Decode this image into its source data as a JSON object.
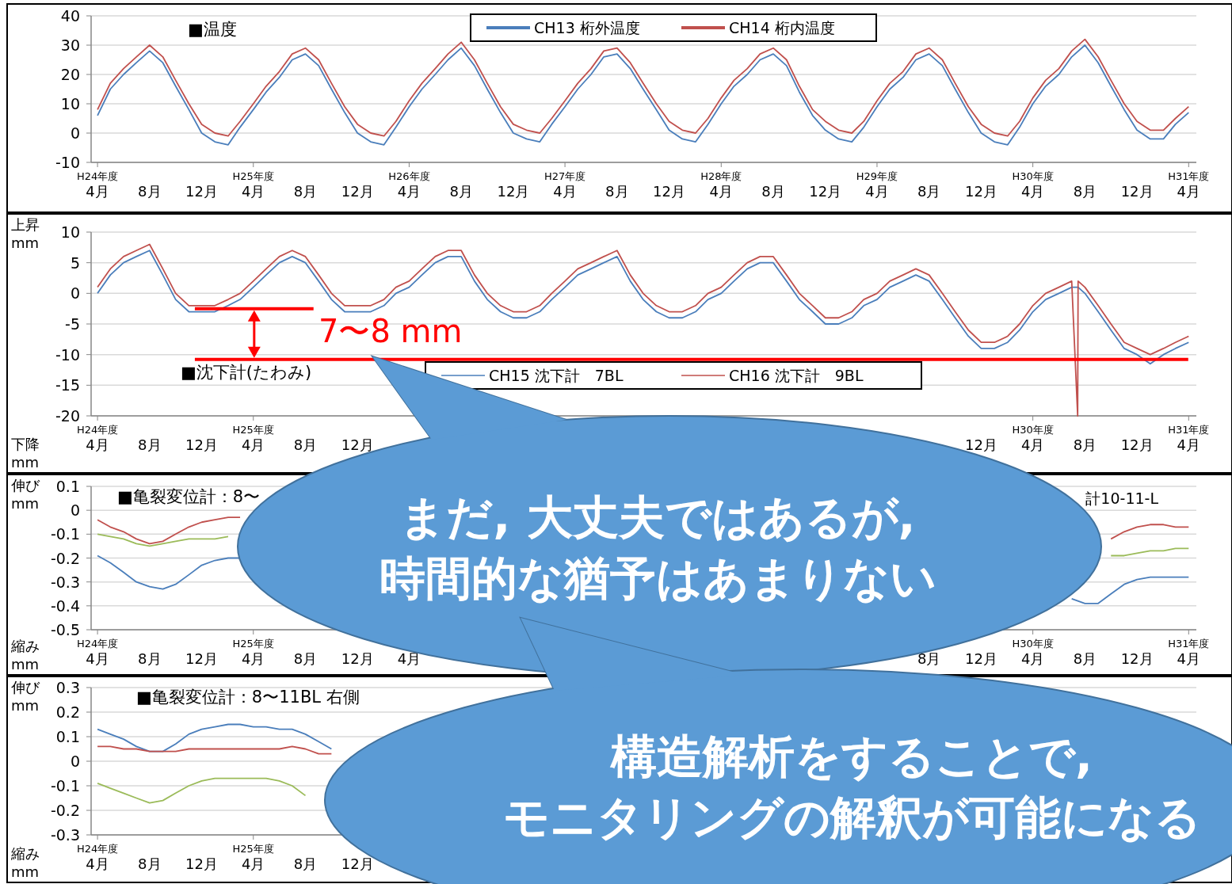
{
  "chart_data": [
    {
      "type": "line",
      "title": "■温度",
      "legend": "top",
      "grid": "y",
      "xlim": [
        "2012-03-17",
        "2019-04-19"
      ],
      "ylim": [
        -10,
        40
      ],
      "yticks": [
        -10,
        0,
        10,
        20,
        30,
        40
      ],
      "xticks": [
        {
          "value": "2012-04",
          "label": "H24年度\n4月"
        },
        {
          "value": "2012-08",
          "label": "8月"
        },
        {
          "value": "2012-12",
          "label": "12月"
        },
        {
          "value": "2013-04",
          "label": "H25年度\n4月"
        },
        {
          "value": "2013-08",
          "label": "8月"
        },
        {
          "value": "2013-12",
          "label": "12月"
        },
        {
          "value": "2014-04",
          "label": "H26年度\n4月"
        },
        {
          "value": "2014-08",
          "label": "8月"
        },
        {
          "value": "2014-12",
          "label": "12月"
        },
        {
          "value": "2015-04",
          "label": "H27年度\n4月"
        },
        {
          "value": "2015-08",
          "label": "8月"
        },
        {
          "value": "2015-12",
          "label": "12月"
        },
        {
          "value": "2016-04",
          "label": "H28年度\n4月"
        },
        {
          "value": "2016-08",
          "label": "8月"
        },
        {
          "value": "2016-12",
          "label": "12月"
        },
        {
          "value": "2017-04",
          "label": "H29年度\n4月"
        },
        {
          "value": "2017-08",
          "label": "8月"
        },
        {
          "value": "2017-12",
          "label": "12月"
        },
        {
          "value": "2018-04",
          "label": "H30年度\n4月"
        },
        {
          "value": "2018-08",
          "label": "8月"
        },
        {
          "value": "2018-12",
          "label": "12月"
        },
        {
          "value": "2019-04",
          "label": "H31年度\n4月"
        }
      ],
      "x": [
        "2012-04",
        "2012-05",
        "2012-06",
        "2012-07",
        "2012-08",
        "2012-09",
        "2012-10",
        "2012-11",
        "2012-12",
        "2013-01",
        "2013-02",
        "2013-03",
        "2013-04",
        "2013-05",
        "2013-06",
        "2013-07",
        "2013-08",
        "2013-09",
        "2013-10",
        "2013-11",
        "2013-12",
        "2014-01",
        "2014-02",
        "2014-03",
        "2014-04",
        "2014-05",
        "2014-06",
        "2014-07",
        "2014-08",
        "2014-09",
        "2014-10",
        "2014-11",
        "2014-12",
        "2015-01",
        "2015-02",
        "2015-03",
        "2015-04",
        "2015-05",
        "2015-06",
        "2015-07",
        "2015-08",
        "2015-09",
        "2015-10",
        "2015-11",
        "2015-12",
        "2016-01",
        "2016-02",
        "2016-03",
        "2016-04",
        "2016-05",
        "2016-06",
        "2016-07",
        "2016-08",
        "2016-09",
        "2016-10",
        "2016-11",
        "2016-12",
        "2017-01",
        "2017-02",
        "2017-03",
        "2017-04",
        "2017-05",
        "2017-06",
        "2017-07",
        "2017-08",
        "2017-09",
        "2017-10",
        "2017-11",
        "2017-12",
        "2018-01",
        "2018-02",
        "2018-03",
        "2018-04",
        "2018-05",
        "2018-06",
        "2018-07",
        "2018-08",
        "2018-09",
        "2018-10",
        "2018-11",
        "2018-12",
        "2019-01",
        "2019-02",
        "2019-03",
        "2019-04"
      ],
      "series": [
        {
          "name": "CH13 桁外温度",
          "color": "#4a7ebb",
          "values": [
            6,
            15,
            20,
            24,
            28,
            24,
            16,
            8,
            0,
            -3,
            -4,
            2,
            8,
            14,
            19,
            25,
            27,
            23,
            15,
            7,
            0,
            -3,
            -4,
            2,
            9,
            15,
            20,
            25,
            29,
            23,
            15,
            7,
            0,
            -2,
            -3,
            3,
            9,
            15,
            20,
            26,
            27,
            22,
            15,
            8,
            1,
            -2,
            -3,
            3,
            10,
            16,
            20,
            25,
            27,
            23,
            14,
            6,
            1,
            -2,
            -3,
            2,
            9,
            15,
            19,
            25,
            27,
            23,
            15,
            7,
            0,
            -3,
            -4,
            2,
            10,
            16,
            20,
            26,
            30,
            24,
            16,
            8,
            1,
            -2,
            -2,
            3,
            7
          ]
        },
        {
          "name": "CH14 桁内温度",
          "color": "#c0504d",
          "values": [
            8,
            17,
            22,
            26,
            30,
            26,
            18,
            10,
            3,
            0,
            -1,
            4,
            10,
            16,
            21,
            27,
            29,
            25,
            17,
            9,
            3,
            0,
            -1,
            4,
            11,
            17,
            22,
            27,
            31,
            25,
            17,
            9,
            3,
            1,
            0,
            5,
            11,
            17,
            22,
            28,
            29,
            24,
            17,
            10,
            4,
            1,
            0,
            5,
            12,
            18,
            22,
            27,
            29,
            25,
            16,
            8,
            4,
            1,
            0,
            4,
            11,
            17,
            21,
            27,
            29,
            25,
            17,
            9,
            3,
            0,
            -1,
            4,
            12,
            18,
            22,
            28,
            32,
            26,
            18,
            10,
            4,
            1,
            1,
            5,
            9
          ]
        }
      ]
    },
    {
      "type": "line",
      "title": "■沈下計(たわみ)",
      "ylabel": "上昇 mm",
      "legend": "bottom",
      "grid": "y",
      "xlim": [
        "2012-03-17",
        "2019-04-19"
      ],
      "ylim": [
        -20,
        10
      ],
      "yticks": [
        -20,
        -15,
        -10,
        -5,
        0,
        5,
        10
      ],
      "annotations": [
        "下降 mm",
        "7〜8 mm"
      ],
      "xticks": [
        {
          "value": "2012-04",
          "label": "H24年度\n4月"
        },
        {
          "value": "2012-08",
          "label": "8月"
        },
        {
          "value": "2012-12",
          "label": "12月"
        },
        {
          "value": "2013-04",
          "label": "H25年度\n4月"
        },
        {
          "value": "2013-08",
          "label": "8月"
        },
        {
          "value": "2013-12",
          "label": "12月"
        },
        {
          "value": "2017-12",
          "label": "12月"
        },
        {
          "value": "2018-04",
          "label": "H30年度\n4月"
        },
        {
          "value": "2018-08",
          "label": "8月"
        },
        {
          "value": "2018-12",
          "label": "12月"
        },
        {
          "value": "2019-04",
          "label": "H31年度\n4月"
        }
      ],
      "x": [
        "2012-04",
        "2012-05",
        "2012-06",
        "2012-07",
        "2012-08",
        "2012-09",
        "2012-10",
        "2012-11",
        "2012-12",
        "2013-01",
        "2013-02",
        "2013-03",
        "2013-04",
        "2013-05",
        "2013-06",
        "2013-07",
        "2013-08",
        "2013-09",
        "2013-10",
        "2013-11",
        "2013-12",
        "2014-01",
        "2014-02",
        "2014-03",
        "2014-04",
        "2014-05",
        "2014-06",
        "2014-07",
        "2014-08",
        "2014-09",
        "2014-10",
        "2014-11",
        "2014-12",
        "2015-01",
        "2015-02",
        "2015-03",
        "2015-04",
        "2015-05",
        "2015-06",
        "2015-07",
        "2015-08",
        "2015-09",
        "2015-10",
        "2015-11",
        "2015-12",
        "2016-01",
        "2016-02",
        "2016-03",
        "2016-04",
        "2016-05",
        "2016-06",
        "2016-07",
        "2016-08",
        "2016-09",
        "2016-10",
        "2016-11",
        "2016-12",
        "2017-01",
        "2017-02",
        "2017-03",
        "2017-04",
        "2017-05",
        "2017-06",
        "2017-07",
        "2017-08",
        "2017-09",
        "2017-10",
        "2017-11",
        "2017-12",
        "2018-01",
        "2018-02",
        "2018-03",
        "2018-04",
        "2018-05",
        "2018-06",
        "2018-07",
        "2018-07-15",
        "2018-07-16",
        "2018-08",
        "2018-09",
        "2018-10",
        "2018-11",
        "2018-12",
        "2019-01",
        "2019-02",
        "2019-03",
        "2019-04"
      ],
      "series": [
        {
          "name": "CH15 沈下計　7BL",
          "color": "#4a7ebb",
          "values": [
            0,
            3,
            5,
            6,
            7,
            3,
            -1,
            -3,
            -3,
            -3,
            -2,
            -1,
            1,
            3,
            5,
            6,
            5,
            2,
            -1,
            -3,
            -3,
            -3,
            -2,
            0,
            1,
            3,
            5,
            6,
            6,
            2,
            -1,
            -3,
            -4,
            -4,
            -3,
            -1,
            1,
            3,
            4,
            5,
            6,
            2,
            -1,
            -3,
            -4,
            -4,
            -3,
            -1,
            0,
            2,
            4,
            5,
            5,
            2,
            -1,
            -3,
            -5,
            -5,
            -4,
            -2,
            -1,
            1,
            2,
            3,
            2,
            -1,
            -4,
            -7,
            -9,
            -9,
            -8,
            -6,
            -3,
            -1,
            0,
            1,
            1,
            1,
            0,
            -3,
            -6,
            -9,
            -10,
            -11.5,
            -10,
            -9,
            -8
          ]
        },
        {
          "name": "CH16 沈下計　9BL",
          "color": "#c0504d",
          "values": [
            1,
            4,
            6,
            7,
            8,
            4,
            0,
            -2,
            -2,
            -2,
            -1,
            0,
            2,
            4,
            6,
            7,
            6,
            3,
            0,
            -2,
            -2,
            -2,
            -1,
            1,
            2,
            4,
            6,
            7,
            7,
            3,
            0,
            -2,
            -3,
            -3,
            -2,
            0,
            2,
            4,
            5,
            6,
            7,
            3,
            0,
            -2,
            -3,
            -3,
            -2,
            0,
            1,
            3,
            5,
            6,
            6,
            3,
            0,
            -2,
            -4,
            -4,
            -3,
            -1,
            0,
            2,
            3,
            4,
            3,
            0,
            -3,
            -6,
            -8,
            -8,
            -7,
            -5,
            -2,
            0,
            1,
            2,
            -20,
            2,
            1,
            -2,
            -5,
            -8,
            -9,
            -10,
            -9,
            -8,
            -7
          ]
        },
        {
          "color": "#ff0000",
          "x": [
            "2012-11-15",
            "2013-08-20"
          ],
          "values": [
            -2.5,
            -2.5
          ]
        },
        {
          "color": "#ff0000",
          "x": [
            "2012-11-15",
            "2019-03-31"
          ],
          "values": [
            -10.8,
            -10.8
          ]
        }
      ]
    },
    {
      "type": "line",
      "title": "■亀裂変位計：8〜",
      "ylabel": "伸び mm",
      "grid": "y",
      "xlim": [
        "2012-03-17",
        "2019-04-19"
      ],
      "ylim": [
        -0.5,
        0.1
      ],
      "yticks": [
        -0.5,
        -0.4,
        -0.3,
        -0.2,
        -0.1,
        0,
        0.1
      ],
      "annotations": [
        "縮み mm",
        "計10-11-L"
      ],
      "xticks": [
        {
          "value": "2012-04",
          "label": "H24年度\n4月"
        },
        {
          "value": "2012-08",
          "label": "8月"
        },
        {
          "value": "2012-12",
          "label": "12月"
        },
        {
          "value": "2013-04",
          "label": "H25年度\n4月"
        },
        {
          "value": "2013-08",
          "label": "8月"
        },
        {
          "value": "2013-12",
          "label": "12月"
        },
        {
          "value": "2014-04",
          "label": "4月"
        },
        {
          "value": "2017-08",
          "label": "8月"
        },
        {
          "value": "2017-12",
          "label": "12月"
        },
        {
          "value": "2018-04",
          "label": "H30年度\n4月"
        },
        {
          "value": "2018-08",
          "label": "8月"
        },
        {
          "value": "2018-12",
          "label": "12月"
        },
        {
          "value": "2019-04",
          "label": "H31年度\n4月"
        }
      ],
      "x": [
        "2012-04",
        "2012-05",
        "2012-06",
        "2012-07",
        "2012-08",
        "2012-09",
        "2012-10",
        "2012-11",
        "2012-12",
        "2013-01",
        "2013-02",
        "2013-03",
        "2015-12",
        "2018-07",
        "2018-08",
        "2018-09",
        "2018-10",
        "2018-11",
        "2018-12",
        "2019-01",
        "2019-02",
        "2019-03",
        "2019-04"
      ],
      "series": [
        {
          "color": "#c0504d",
          "values": [
            -0.04,
            -0.07,
            -0.09,
            -0.12,
            -0.14,
            -0.13,
            -0.1,
            -0.07,
            -0.05,
            -0.04,
            -0.03,
            -0.03,
            null,
            null,
            null,
            null,
            -0.12,
            -0.09,
            -0.07,
            -0.06,
            -0.06,
            -0.07,
            -0.07
          ]
        },
        {
          "color": "#9bbb59",
          "values": [
            -0.1,
            -0.11,
            -0.12,
            -0.14,
            -0.15,
            -0.14,
            -0.13,
            -0.12,
            -0.12,
            -0.12,
            -0.11,
            null,
            null,
            null,
            null,
            null,
            -0.19,
            -0.19,
            -0.18,
            -0.17,
            -0.17,
            -0.16,
            -0.16
          ]
        },
        {
          "color": "#4a7ebb",
          "values": [
            -0.19,
            -0.22,
            -0.26,
            -0.3,
            -0.32,
            -0.33,
            -0.31,
            -0.27,
            -0.23,
            -0.21,
            -0.2,
            -0.2,
            null,
            -0.37,
            -0.39,
            -0.39,
            -0.35,
            -0.31,
            -0.29,
            -0.28,
            -0.28,
            -0.28,
            -0.28
          ]
        }
      ]
    },
    {
      "type": "line",
      "title": "■亀裂変位計：8〜11BL  右側",
      "ylabel": "伸び mm",
      "grid": "y",
      "xlim": [
        "2012-03-17",
        "2019-04-19"
      ],
      "ylim": [
        -0.3,
        0.3
      ],
      "yticks": [
        -0.3,
        -0.2,
        -0.1,
        0,
        0.1,
        0.2,
        0.3
      ],
      "annotations": [
        "縮み mm"
      ],
      "xticks": [
        {
          "value": "2012-04",
          "label": "H24年度\n4月"
        },
        {
          "value": "2012-08",
          "label": "8月"
        },
        {
          "value": "2012-12",
          "label": "12月"
        },
        {
          "value": "2013-04",
          "label": "H25年度\n4月"
        },
        {
          "value": "2013-08",
          "label": "8月"
        },
        {
          "value": "2013-12",
          "label": "12月"
        }
      ],
      "x": [
        "2012-04",
        "2012-05",
        "2012-06",
        "2012-07",
        "2012-08",
        "2012-09",
        "2012-10",
        "2012-11",
        "2012-12",
        "2013-01",
        "2013-02",
        "2013-03",
        "2013-04",
        "2013-05",
        "2013-06",
        "2013-07",
        "2013-08",
        "2013-09",
        "2013-10"
      ],
      "series": [
        {
          "color": "#4a7ebb",
          "values": [
            0.13,
            0.11,
            0.09,
            0.06,
            0.04,
            0.04,
            0.07,
            0.11,
            0.13,
            0.14,
            0.15,
            0.15,
            0.14,
            0.14,
            0.13,
            0.13,
            0.11,
            0.08,
            0.05
          ]
        },
        {
          "color": "#c0504d",
          "values": [
            0.06,
            0.06,
            0.05,
            0.05,
            0.04,
            0.04,
            0.04,
            0.05,
            0.05,
            0.05,
            0.05,
            0.05,
            0.05,
            0.05,
            0.05,
            0.06,
            0.05,
            0.03,
            0.03
          ]
        },
        {
          "color": "#9bbb59",
          "values": [
            -0.09,
            -0.11,
            -0.13,
            -0.15,
            -0.17,
            -0.16,
            -0.13,
            -0.1,
            -0.08,
            -0.07,
            -0.07,
            -0.07,
            -0.07,
            -0.07,
            -0.08,
            -0.1,
            -0.14,
            null,
            null
          ]
        }
      ]
    },
    {
      "type": "other",
      "annotations": [
        "まだ, 大丈夫ではあるが,\n時間的な猶予はあまりない",
        "構造解析をすることで,\nモニタリングの解釈が可能になる"
      ]
    }
  ]
}
